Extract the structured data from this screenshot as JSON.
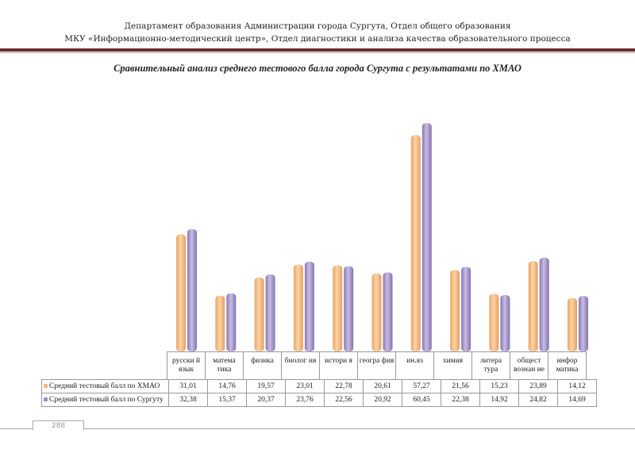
{
  "header": {
    "line1": "Департамент образования Администрации города Сургута, Отдел общего образования",
    "line2": "МКУ «Информационно-методический центр», Отдел диагностики и анализа качества образовательного процесса"
  },
  "footer": {
    "page_number": "288"
  },
  "chart_data": {
    "type": "bar",
    "title": "Сравнительный анализ среднего тестового балла города Сургута с результатами по ХМАО",
    "categories": [
      "русски й язык",
      "матема тика",
      "физика",
      "биолог ия",
      "истори я",
      "геогра фия",
      "ин.яз",
      "химия",
      "литера тура",
      "общест вознан ие",
      "инфор матика"
    ],
    "series": [
      {
        "name": "Средний тестовый балл по ХМАО",
        "color": "#f5b97f",
        "labels": [
          "31,01",
          "14,76",
          "19,57",
          "23,01",
          "22,78",
          "20,61",
          "57,27",
          "21,56",
          "15,23",
          "23,89",
          "14,12"
        ],
        "values": [
          31.01,
          14.76,
          19.57,
          23.01,
          22.78,
          20.61,
          57.27,
          21.56,
          15.23,
          23.89,
          14.12
        ]
      },
      {
        "name": "Средний тестовый балл по Сургуту",
        "color": "#a08fc4",
        "labels": [
          "32,38",
          "15,37",
          "20,37",
          "23,76",
          "22,56",
          "20,92",
          "60,45",
          "22,38",
          "14,92",
          "24,82",
          "14,69"
        ],
        "values": [
          32.38,
          15.37,
          20.37,
          23.76,
          22.56,
          20.92,
          60.45,
          22.38,
          14.92,
          24.82,
          14.69
        ]
      }
    ],
    "data_table": true,
    "grid": false
  }
}
